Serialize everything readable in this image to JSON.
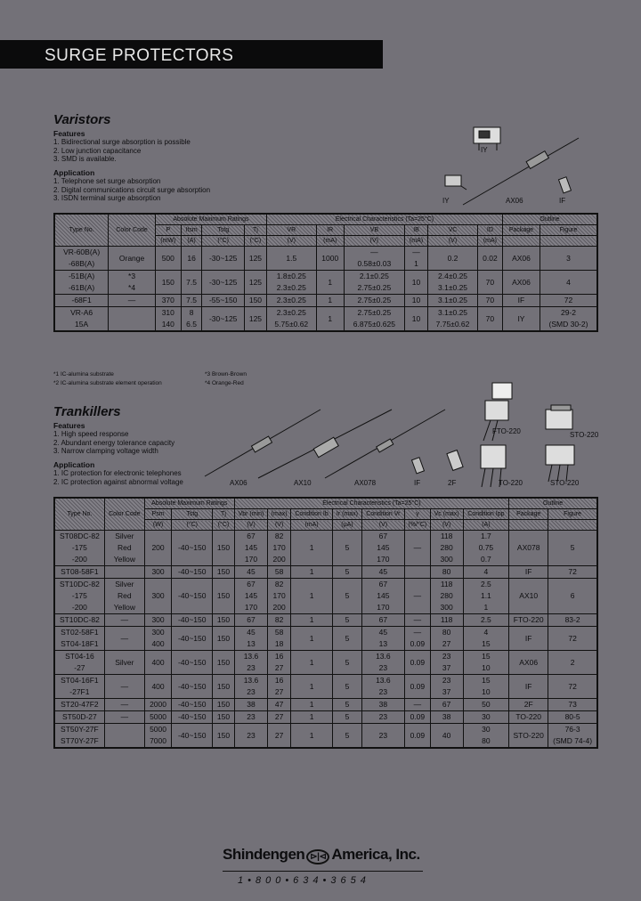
{
  "header": {
    "title": "SURGE PROTECTORS"
  },
  "varistors": {
    "title": "Varistors",
    "features_heading": "Features",
    "features": [
      "1. Bidirectional surge absorption is possible",
      "2. Low junction capacitance",
      "3. SMD is available."
    ],
    "application_heading": "Application",
    "applications": [
      "1. Telephone set surge absorption",
      "2. Digital communications circuit surge absorption",
      "3. ISDN terminal surge absorption"
    ],
    "package_labels": [
      "IY",
      "IY",
      "AX06",
      "IF"
    ],
    "table": {
      "group_headers": [
        "Absolute Maximum Ratings",
        "Electrical Characteristics (Ta=25°C)",
        "Outline"
      ],
      "columns": [
        "Type No.",
        "Color Code",
        "P",
        "Itsm",
        "Tstg",
        "Tj",
        "VR",
        "IR",
        "VB",
        "IB",
        "VC",
        "ID",
        "Package",
        "Figure"
      ],
      "units": [
        "",
        "",
        "(mW)",
        "(A)",
        "(°C)",
        "(°C)",
        "(V)",
        "(mA)",
        "(V)",
        "(mA)",
        "(V)",
        "(mA)",
        "",
        ""
      ],
      "rows": [
        [
          "VR-60B(A)\n-68B(A)",
          "Orange",
          "500",
          "16",
          "-30~125",
          "125",
          "1.5",
          "1000",
          "—\n0.58±0.03",
          "—\n1",
          "0.2",
          "0.02",
          "AX06",
          "3"
        ],
        [
          "-51B(A)\n-61B(A)",
          "*3\n*4",
          "150",
          "7.5",
          "-30~125",
          "125",
          "1.8±0.25\n2.3±0.25",
          "1",
          "2.1±0.25\n2.75±0.25",
          "10",
          "2.4±0.25\n3.1±0.25",
          "70",
          "AX06",
          "4"
        ],
        [
          "-68F1",
          "—",
          "370",
          "7.5",
          "-55~150",
          "150",
          "2.3±0.25",
          "1",
          "2.75±0.25",
          "10",
          "3.1±0.25",
          "70",
          "IF",
          "72"
        ],
        [
          "VR-A6\n15A",
          "",
          "310\n140",
          "8\n6.5",
          "-30~125",
          "125",
          "2.3±0.25\n5.75±0.62",
          "1",
          "2.75±0.25\n6.875±0.625",
          "10",
          "3.1±0.25\n7.75±0.62",
          "70",
          "IY",
          "29-2\n(SMD 30-2)"
        ]
      ]
    },
    "notes": [
      "*1 IC-alumina substrate",
      "*3 Brown-Brown",
      "*2 IC-alumina substrate element operation",
      "*4 Orange-Red"
    ]
  },
  "trankillers": {
    "title": "Trankillers",
    "features_heading": "Features",
    "features": [
      "1. High speed response",
      "2. Abundant energy tolerance capacity",
      "3. Narrow clamping voltage width"
    ],
    "application_heading": "Application",
    "applications": [
      "1. IC protection for electronic telephones",
      "2. IC protection against abnormal voltage"
    ],
    "package_labels": [
      "AX06",
      "AX10",
      "AX078",
      "IF",
      "2F",
      "FTO-220",
      "TO-220",
      "STO-220",
      "STO-220"
    ],
    "table": {
      "group_headers": [
        "Absolute Maximum Ratings",
        "Electrical Characteristics (Ta=25°C)",
        "Outline"
      ],
      "columns": [
        "Type No.",
        "Color Code",
        "Psm",
        "Tstg",
        "Tj",
        "Vbr (min)",
        "(max)",
        "Condition Ib",
        "Ir (max)",
        "Condition Vr",
        "γ",
        "Vc (max)",
        "Condition Ipp",
        "Package",
        "Figure"
      ],
      "units": [
        "",
        "",
        "(W)",
        "(°C)",
        "(°C)",
        "(V)",
        "(V)",
        "(mA)",
        "(µA)",
        "(V)",
        "(%/°C)",
        "(V)",
        "(A)",
        "",
        ""
      ],
      "rows": [
        [
          "ST08DC-82\n-175\n-200",
          "Silver\nRed\nYellow",
          "200",
          "-40~150",
          "150",
          "67\n145\n170",
          "82\n170\n200",
          "1",
          "5",
          "67\n145\n170",
          "—",
          "118\n280\n300",
          "1.7\n0.75\n0.7",
          "AX078",
          "5"
        ],
        [
          "ST08-58F1",
          "",
          "300",
          "-40~150",
          "150",
          "45",
          "58",
          "1",
          "5",
          "45",
          "",
          "80",
          "4",
          "IF",
          "72"
        ],
        [
          "ST10DC-82\n-175\n-200",
          "Silver\nRed\nYellow",
          "300",
          "-40~150",
          "150",
          "67\n145\n170",
          "82\n170\n200",
          "1",
          "5",
          "67\n145\n170",
          "—",
          "118\n280\n300",
          "2.5\n1.1\n1",
          "AX10",
          "6"
        ],
        [
          "ST10DC-82",
          "—",
          "300",
          "-40~150",
          "150",
          "67",
          "82",
          "1",
          "5",
          "67",
          "—",
          "118",
          "2.5",
          "FTO-220",
          "83-2"
        ],
        [
          "ST02-58F1\nST04-18F1",
          "—",
          "300\n400",
          "-40~150",
          "150",
          "45\n13",
          "58\n18",
          "1",
          "5",
          "45\n13",
          "—\n0.09",
          "80\n27",
          "4\n15",
          "IF",
          "72"
        ],
        [
          "ST04-16\n-27",
          "Silver",
          "400",
          "-40~150",
          "150",
          "13.6\n23",
          "16\n27",
          "1",
          "5",
          "13.6\n23",
          "0.09",
          "23\n37",
          "15\n10",
          "AX06",
          "2"
        ],
        [
          "ST04-16F1\n-27F1",
          "—",
          "400",
          "-40~150",
          "150",
          "13.6\n23",
          "16\n27",
          "1",
          "5",
          "13.6\n23",
          "0.09",
          "23\n37",
          "15\n10",
          "IF",
          "72"
        ],
        [
          "ST20-47F2",
          "—",
          "2000",
          "-40~150",
          "150",
          "38",
          "47",
          "1",
          "5",
          "38",
          "—",
          "67",
          "50",
          "2F",
          "73"
        ],
        [
          "ST50D-27",
          "—",
          "5000",
          "-40~150",
          "150",
          "23",
          "27",
          "1",
          "5",
          "23",
          "0.09",
          "38",
          "30",
          "TO-220",
          "80-5"
        ],
        [
          "ST50Y-27F\nST70Y-27F",
          "",
          "5000\n7000",
          "-40~150",
          "150",
          "23",
          "27",
          "1",
          "5",
          "23",
          "0.09",
          "40",
          "30\n80",
          "STO-220",
          "76-3\n(SMD 74-4)"
        ]
      ]
    }
  },
  "footer": {
    "company": "Shindengen",
    "logo_mark": "⊳|⊲",
    "company2": "America, Inc.",
    "phone": "1•800•634•3654"
  }
}
